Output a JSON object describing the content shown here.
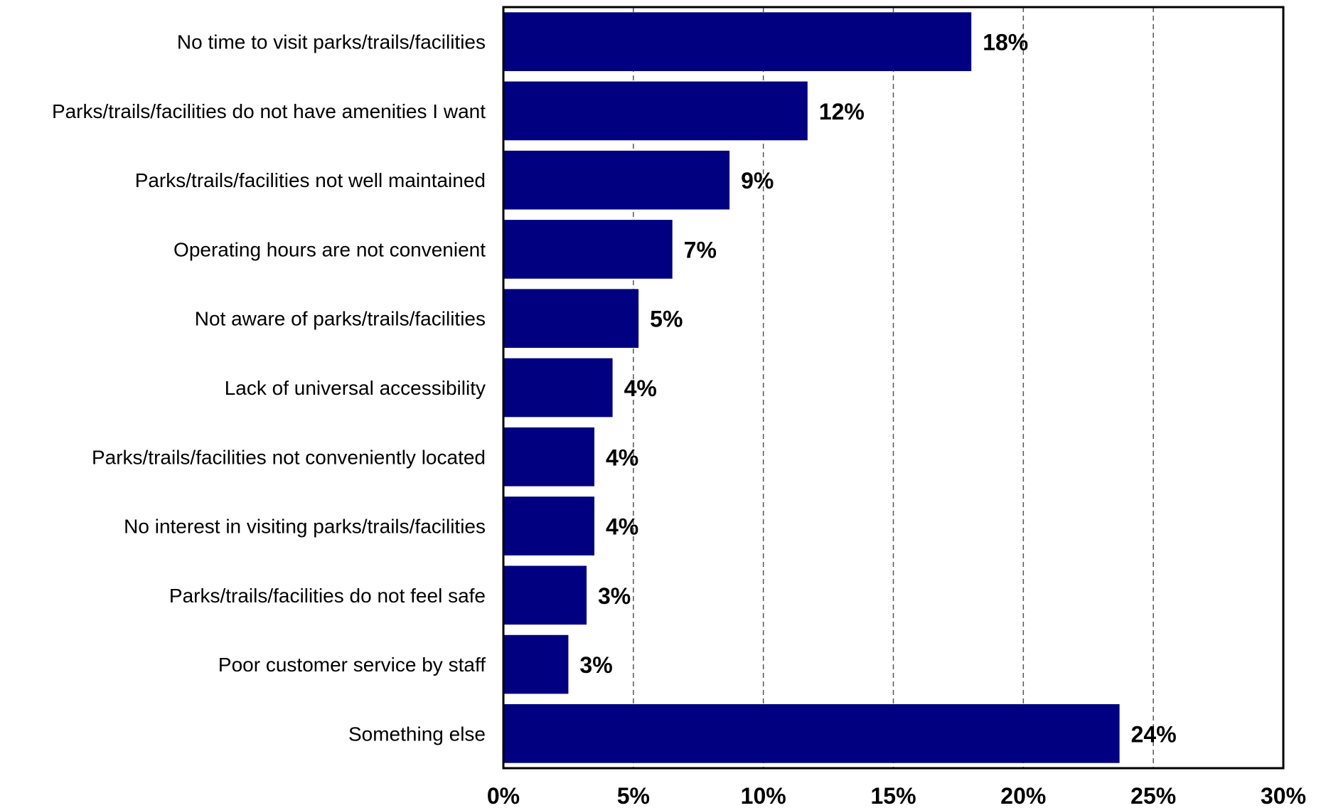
{
  "chart_data": {
    "type": "bar",
    "orientation": "horizontal",
    "categories": [
      "No time to visit parks/trails/facilities",
      "Parks/trails/facilities do not have amenities I want",
      "Parks/trails/facilities not well maintained",
      "Operating hours are not convenient",
      "Not aware of parks/trails/facilities",
      "Lack of universal accessibility",
      "Parks/trails/facilities not conveniently located",
      "No interest in visiting parks/trails/facilities",
      "Parks/trails/facilities do not feel safe",
      "Poor customer service by staff",
      "Something else"
    ],
    "values": [
      18.0,
      11.7,
      8.7,
      6.5,
      5.2,
      4.2,
      3.5,
      3.5,
      3.2,
      2.5,
      23.7
    ],
    "data_labels": [
      "18%",
      "12%",
      "9%",
      "7%",
      "5%",
      "4%",
      "4%",
      "4%",
      "3%",
      "3%",
      "24%"
    ],
    "xlim": [
      0,
      30
    ],
    "xticks": [
      0,
      5,
      10,
      15,
      20,
      25,
      30
    ],
    "xtick_labels": [
      "0%",
      "5%",
      "10%",
      "15%",
      "20%",
      "25%",
      "30%"
    ],
    "grid": "vertical dashed",
    "bar_color": "#000080",
    "title": "",
    "xlabel": "",
    "ylabel": ""
  }
}
